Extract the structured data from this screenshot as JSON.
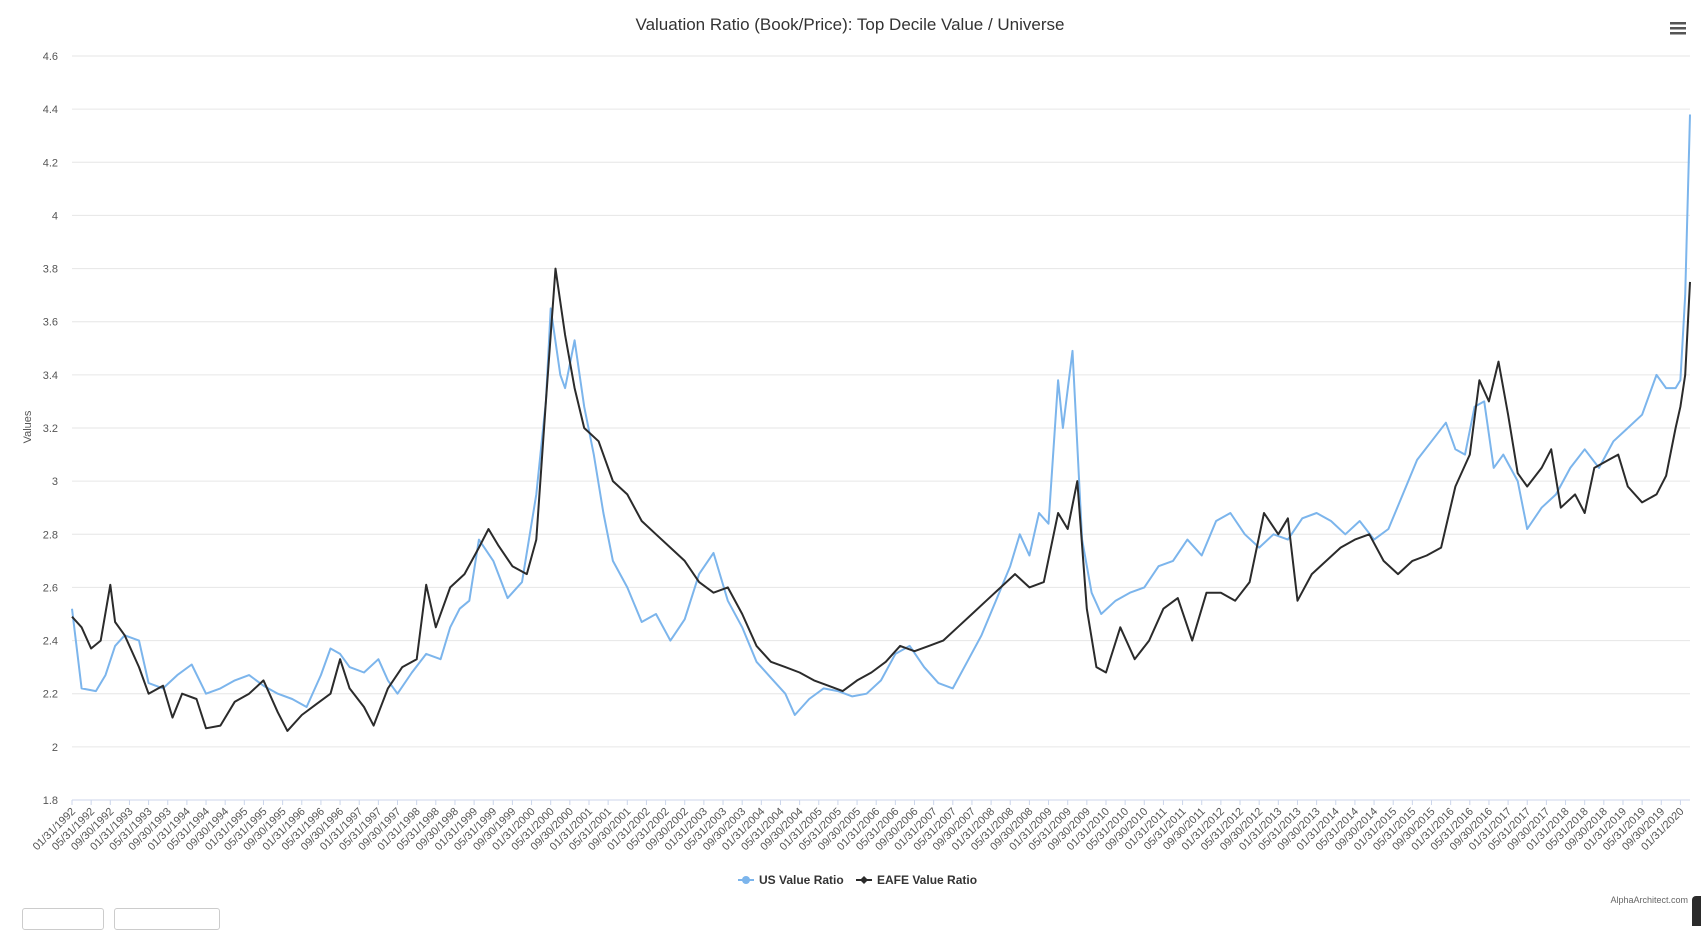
{
  "chart_data": {
    "type": "line",
    "title": "Valuation Ratio (Book/Price): Top Decile Value / Universe",
    "ylabel": "Values",
    "xlabel": "",
    "ylim": [
      1.8,
      4.6
    ],
    "yticks": [
      "1.8",
      "2",
      "2.2",
      "2.4",
      "2.6",
      "2.8",
      "3",
      "3.2",
      "3.4",
      "3.6",
      "3.8",
      "4",
      "4.2",
      "4.4",
      "4.6"
    ],
    "x_start": "1992-01",
    "x_end": "2020-03",
    "xtick_labels": [
      "01/31/1992",
      "05/31/1992",
      "09/30/1992",
      "01/31/1993",
      "05/31/1993",
      "09/30/1993",
      "01/31/1994",
      "05/31/1994",
      "09/30/1994",
      "01/31/1995",
      "05/31/1995",
      "09/30/1995",
      "01/31/1996",
      "05/31/1996",
      "09/30/1996",
      "01/31/1997",
      "05/31/1997",
      "09/30/1997",
      "01/31/1998",
      "05/31/1998",
      "09/30/1998",
      "01/31/1999",
      "05/31/1999",
      "09/30/1999",
      "01/31/2000",
      "05/31/2000",
      "09/30/2000",
      "01/31/2001",
      "05/31/2001",
      "09/30/2001",
      "01/31/2002",
      "05/31/2002",
      "09/30/2002",
      "01/31/2003",
      "05/31/2003",
      "09/30/2003",
      "01/31/2004",
      "05/31/2004",
      "09/30/2004",
      "01/31/2005",
      "05/31/2005",
      "09/30/2005",
      "01/31/2006",
      "05/31/2006",
      "09/30/2006",
      "01/31/2007",
      "05/31/2007",
      "09/30/2007",
      "01/31/2008",
      "05/31/2008",
      "09/30/2008",
      "01/31/2009",
      "05/31/2009",
      "09/30/2009",
      "01/31/2010",
      "05/31/2010",
      "09/30/2010",
      "01/31/2011",
      "05/31/2011",
      "09/30/2011",
      "01/31/2012",
      "05/31/2012",
      "09/30/2012",
      "01/31/2013",
      "05/31/2013",
      "09/30/2013",
      "01/31/2014",
      "05/31/2014",
      "09/30/2014",
      "01/31/2015",
      "05/31/2015",
      "09/30/2015",
      "01/31/2016",
      "05/31/2016",
      "09/30/2016",
      "01/31/2017",
      "05/31/2017",
      "09/30/2017",
      "01/31/2018",
      "05/31/2018",
      "09/30/2018",
      "01/31/2019",
      "05/31/2019",
      "09/30/2019",
      "01/31/2020"
    ],
    "legend_position": "bottom-center",
    "grid": "horizontal",
    "series": [
      {
        "name": "US Value Ratio",
        "color": "#7cb5ec",
        "points": [
          [
            "1992-01",
            2.52
          ],
          [
            "1992-03",
            2.22
          ],
          [
            "1992-06",
            2.21
          ],
          [
            "1992-08",
            2.27
          ],
          [
            "1992-10",
            2.38
          ],
          [
            "1992-12",
            2.42
          ],
          [
            "1993-03",
            2.4
          ],
          [
            "1993-05",
            2.24
          ],
          [
            "1993-08",
            2.22
          ],
          [
            "1993-11",
            2.27
          ],
          [
            "1994-02",
            2.31
          ],
          [
            "1994-05",
            2.2
          ],
          [
            "1994-08",
            2.22
          ],
          [
            "1994-11",
            2.25
          ],
          [
            "1995-02",
            2.27
          ],
          [
            "1995-05",
            2.23
          ],
          [
            "1995-08",
            2.2
          ],
          [
            "1995-11",
            2.18
          ],
          [
            "1996-02",
            2.15
          ],
          [
            "1996-05",
            2.27
          ],
          [
            "1996-07",
            2.37
          ],
          [
            "1996-09",
            2.35
          ],
          [
            "1996-11",
            2.3
          ],
          [
            "1997-02",
            2.28
          ],
          [
            "1997-05",
            2.33
          ],
          [
            "1997-07",
            2.25
          ],
          [
            "1997-09",
            2.2
          ],
          [
            "1997-12",
            2.28
          ],
          [
            "1998-03",
            2.35
          ],
          [
            "1998-06",
            2.33
          ],
          [
            "1998-08",
            2.45
          ],
          [
            "1998-10",
            2.52
          ],
          [
            "1998-12",
            2.55
          ],
          [
            "1999-02",
            2.78
          ],
          [
            "1999-05",
            2.7
          ],
          [
            "1999-08",
            2.56
          ],
          [
            "1999-11",
            2.62
          ],
          [
            "2000-02",
            2.95
          ],
          [
            "2000-04",
            3.3
          ],
          [
            "2000-05",
            3.65
          ],
          [
            "2000-07",
            3.4
          ],
          [
            "2000-08",
            3.35
          ],
          [
            "2000-10",
            3.53
          ],
          [
            "2000-12",
            3.28
          ],
          [
            "2001-02",
            3.1
          ],
          [
            "2001-04",
            2.88
          ],
          [
            "2001-06",
            2.7
          ],
          [
            "2001-09",
            2.6
          ],
          [
            "2001-12",
            2.47
          ],
          [
            "2002-03",
            2.5
          ],
          [
            "2002-06",
            2.4
          ],
          [
            "2002-09",
            2.48
          ],
          [
            "2002-12",
            2.65
          ],
          [
            "2003-03",
            2.73
          ],
          [
            "2003-06",
            2.55
          ],
          [
            "2003-09",
            2.45
          ],
          [
            "2003-12",
            2.32
          ],
          [
            "2004-03",
            2.26
          ],
          [
            "2004-06",
            2.2
          ],
          [
            "2004-08",
            2.12
          ],
          [
            "2004-11",
            2.18
          ],
          [
            "2005-02",
            2.22
          ],
          [
            "2005-05",
            2.21
          ],
          [
            "2005-08",
            2.19
          ],
          [
            "2005-11",
            2.2
          ],
          [
            "2006-02",
            2.25
          ],
          [
            "2006-05",
            2.35
          ],
          [
            "2006-08",
            2.38
          ],
          [
            "2006-11",
            2.3
          ],
          [
            "2007-02",
            2.24
          ],
          [
            "2007-05",
            2.22
          ],
          [
            "2007-08",
            2.32
          ],
          [
            "2007-11",
            2.42
          ],
          [
            "2008-02",
            2.55
          ],
          [
            "2008-05",
            2.68
          ],
          [
            "2008-07",
            2.8
          ],
          [
            "2008-09",
            2.72
          ],
          [
            "2008-11",
            2.88
          ],
          [
            "2009-01",
            2.84
          ],
          [
            "2009-03",
            3.38
          ],
          [
            "2009-04",
            3.2
          ],
          [
            "2009-06",
            3.49
          ],
          [
            "2009-08",
            2.78
          ],
          [
            "2009-10",
            2.58
          ],
          [
            "2009-12",
            2.5
          ],
          [
            "2010-03",
            2.55
          ],
          [
            "2010-06",
            2.58
          ],
          [
            "2010-09",
            2.6
          ],
          [
            "2010-12",
            2.68
          ],
          [
            "2011-03",
            2.7
          ],
          [
            "2011-06",
            2.78
          ],
          [
            "2011-09",
            2.72
          ],
          [
            "2011-12",
            2.85
          ],
          [
            "2012-03",
            2.88
          ],
          [
            "2012-06",
            2.8
          ],
          [
            "2012-09",
            2.75
          ],
          [
            "2012-12",
            2.8
          ],
          [
            "2013-03",
            2.78
          ],
          [
            "2013-06",
            2.86
          ],
          [
            "2013-09",
            2.88
          ],
          [
            "2013-12",
            2.85
          ],
          [
            "2014-03",
            2.8
          ],
          [
            "2014-06",
            2.85
          ],
          [
            "2014-09",
            2.78
          ],
          [
            "2014-12",
            2.82
          ],
          [
            "2015-03",
            2.95
          ],
          [
            "2015-06",
            3.08
          ],
          [
            "2015-09",
            3.15
          ],
          [
            "2015-12",
            3.22
          ],
          [
            "2016-02",
            3.12
          ],
          [
            "2016-04",
            3.1
          ],
          [
            "2016-06",
            3.28
          ],
          [
            "2016-08",
            3.3
          ],
          [
            "2016-10",
            3.05
          ],
          [
            "2016-12",
            3.1
          ],
          [
            "2017-03",
            3.0
          ],
          [
            "2017-05",
            2.82
          ],
          [
            "2017-08",
            2.9
          ],
          [
            "2017-11",
            2.95
          ],
          [
            "2018-02",
            3.05
          ],
          [
            "2018-05",
            3.12
          ],
          [
            "2018-08",
            3.05
          ],
          [
            "2018-11",
            3.15
          ],
          [
            "2019-02",
            3.2
          ],
          [
            "2019-05",
            3.25
          ],
          [
            "2019-08",
            3.4
          ],
          [
            "2019-10",
            3.35
          ],
          [
            "2019-12",
            3.35
          ],
          [
            "2020-01",
            3.38
          ],
          [
            "2020-02",
            3.7
          ],
          [
            "2020-03",
            4.38
          ]
        ]
      },
      {
        "name": "EAFE Value Ratio",
        "color": "#2b2b2b",
        "points": [
          [
            "1992-01",
            2.49
          ],
          [
            "1992-03",
            2.45
          ],
          [
            "1992-05",
            2.37
          ],
          [
            "1992-07",
            2.4
          ],
          [
            "1992-09",
            2.61
          ],
          [
            "1992-10",
            2.47
          ],
          [
            "1992-12",
            2.42
          ],
          [
            "1993-03",
            2.3
          ],
          [
            "1993-05",
            2.2
          ],
          [
            "1993-08",
            2.23
          ],
          [
            "1993-10",
            2.11
          ],
          [
            "1993-12",
            2.2
          ],
          [
            "1994-03",
            2.18
          ],
          [
            "1994-05",
            2.07
          ],
          [
            "1994-08",
            2.08
          ],
          [
            "1994-11",
            2.17
          ],
          [
            "1995-02",
            2.2
          ],
          [
            "1995-05",
            2.25
          ],
          [
            "1995-08",
            2.13
          ],
          [
            "1995-10",
            2.06
          ],
          [
            "1996-01",
            2.12
          ],
          [
            "1996-04",
            2.16
          ],
          [
            "1996-07",
            2.2
          ],
          [
            "1996-09",
            2.33
          ],
          [
            "1996-11",
            2.22
          ],
          [
            "1997-02",
            2.15
          ],
          [
            "1997-04",
            2.08
          ],
          [
            "1997-07",
            2.22
          ],
          [
            "1997-10",
            2.3
          ],
          [
            "1998-01",
            2.33
          ],
          [
            "1998-03",
            2.61
          ],
          [
            "1998-05",
            2.45
          ],
          [
            "1998-08",
            2.6
          ],
          [
            "1998-11",
            2.65
          ],
          [
            "1999-02",
            2.75
          ],
          [
            "1999-04",
            2.82
          ],
          [
            "1999-06",
            2.76
          ],
          [
            "1999-09",
            2.68
          ],
          [
            "1999-12",
            2.65
          ],
          [
            "2000-02",
            2.78
          ],
          [
            "2000-04",
            3.3
          ],
          [
            "2000-06",
            3.8
          ],
          [
            "2000-08",
            3.55
          ],
          [
            "2000-10",
            3.35
          ],
          [
            "2000-12",
            3.2
          ],
          [
            "2001-03",
            3.15
          ],
          [
            "2001-06",
            3.0
          ],
          [
            "2001-09",
            2.95
          ],
          [
            "2001-12",
            2.85
          ],
          [
            "2002-03",
            2.8
          ],
          [
            "2002-06",
            2.75
          ],
          [
            "2002-09",
            2.7
          ],
          [
            "2002-12",
            2.62
          ],
          [
            "2003-03",
            2.58
          ],
          [
            "2003-06",
            2.6
          ],
          [
            "2003-09",
            2.5
          ],
          [
            "2003-12",
            2.38
          ],
          [
            "2004-03",
            2.32
          ],
          [
            "2004-06",
            2.3
          ],
          [
            "2004-09",
            2.28
          ],
          [
            "2004-12",
            2.25
          ],
          [
            "2005-03",
            2.23
          ],
          [
            "2005-06",
            2.21
          ],
          [
            "2005-09",
            2.25
          ],
          [
            "2005-12",
            2.28
          ],
          [
            "2006-03",
            2.32
          ],
          [
            "2006-06",
            2.38
          ],
          [
            "2006-09",
            2.36
          ],
          [
            "2006-12",
            2.38
          ],
          [
            "2007-03",
            2.4
          ],
          [
            "2007-06",
            2.45
          ],
          [
            "2007-09",
            2.5
          ],
          [
            "2007-12",
            2.55
          ],
          [
            "2008-03",
            2.6
          ],
          [
            "2008-06",
            2.65
          ],
          [
            "2008-09",
            2.6
          ],
          [
            "2008-12",
            2.62
          ],
          [
            "2009-03",
            2.88
          ],
          [
            "2009-05",
            2.82
          ],
          [
            "2009-07",
            3.0
          ],
          [
            "2009-09",
            2.52
          ],
          [
            "2009-11",
            2.3
          ],
          [
            "2010-01",
            2.28
          ],
          [
            "2010-04",
            2.45
          ],
          [
            "2010-07",
            2.33
          ],
          [
            "2010-10",
            2.4
          ],
          [
            "2011-01",
            2.52
          ],
          [
            "2011-04",
            2.56
          ],
          [
            "2011-07",
            2.4
          ],
          [
            "2011-10",
            2.58
          ],
          [
            "2012-01",
            2.58
          ],
          [
            "2012-04",
            2.55
          ],
          [
            "2012-07",
            2.62
          ],
          [
            "2012-10",
            2.88
          ],
          [
            "2013-01",
            2.8
          ],
          [
            "2013-03",
            2.86
          ],
          [
            "2013-05",
            2.55
          ],
          [
            "2013-08",
            2.65
          ],
          [
            "2013-11",
            2.7
          ],
          [
            "2014-02",
            2.75
          ],
          [
            "2014-05",
            2.78
          ],
          [
            "2014-08",
            2.8
          ],
          [
            "2014-11",
            2.7
          ],
          [
            "2015-02",
            2.65
          ],
          [
            "2015-05",
            2.7
          ],
          [
            "2015-08",
            2.72
          ],
          [
            "2015-11",
            2.75
          ],
          [
            "2016-02",
            2.98
          ],
          [
            "2016-05",
            3.1
          ],
          [
            "2016-07",
            3.38
          ],
          [
            "2016-09",
            3.3
          ],
          [
            "2016-11",
            3.45
          ],
          [
            "2017-01",
            3.25
          ],
          [
            "2017-03",
            3.03
          ],
          [
            "2017-05",
            2.98
          ],
          [
            "2017-08",
            3.05
          ],
          [
            "2017-10",
            3.12
          ],
          [
            "2017-12",
            2.9
          ],
          [
            "2018-03",
            2.95
          ],
          [
            "2018-05",
            2.88
          ],
          [
            "2018-07",
            3.05
          ],
          [
            "2018-10",
            3.08
          ],
          [
            "2018-12",
            3.1
          ],
          [
            "2019-02",
            2.98
          ],
          [
            "2019-05",
            2.92
          ],
          [
            "2019-08",
            2.95
          ],
          [
            "2019-10",
            3.02
          ],
          [
            "2019-12",
            3.2
          ],
          [
            "2020-01",
            3.28
          ],
          [
            "2020-02",
            3.4
          ],
          [
            "2020-03",
            3.75
          ]
        ]
      }
    ]
  },
  "ui": {
    "menu_icon": "hamburger-menu-icon",
    "credit": "AlphaArchitect.com"
  }
}
